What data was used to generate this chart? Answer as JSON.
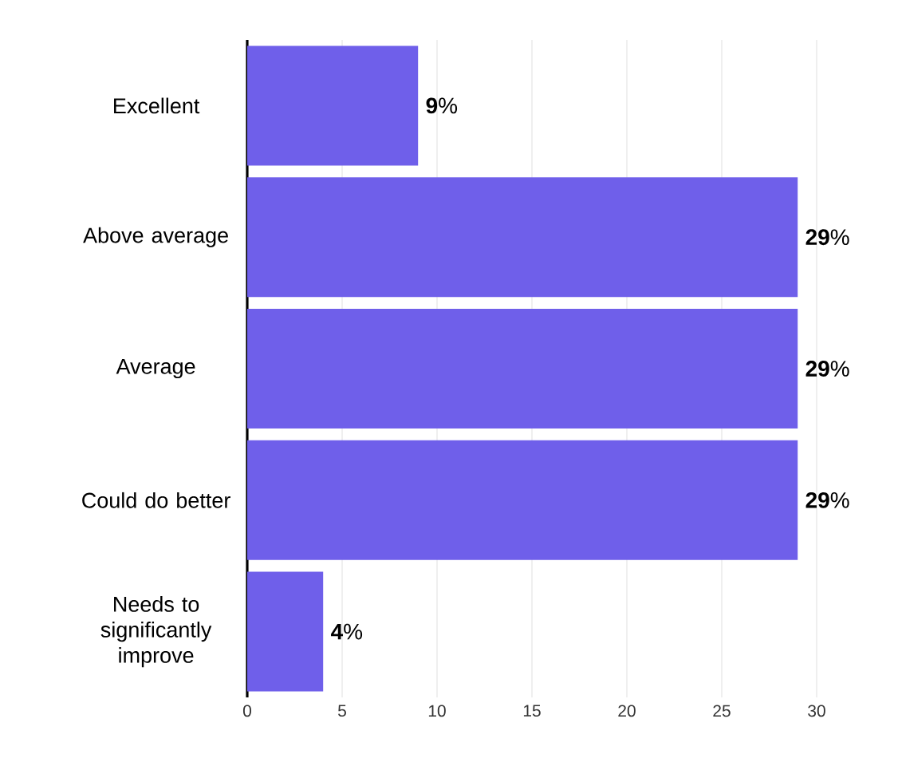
{
  "chart_data": {
    "type": "bar",
    "orientation": "horizontal",
    "categories": [
      "Excellent",
      "Above average",
      "Average",
      "Could do better",
      "Needs to significantly improve"
    ],
    "values": [
      9,
      29,
      29,
      29,
      4
    ],
    "value_labels": [
      "**9**%",
      "**29**%",
      "**29**%",
      "**29**%",
      "**4**%"
    ],
    "color": "#6f5fea",
    "xlim": [
      0,
      30
    ],
    "xticks": [
      0,
      5,
      10,
      15,
      20,
      25,
      30
    ],
    "grid": "x"
  }
}
